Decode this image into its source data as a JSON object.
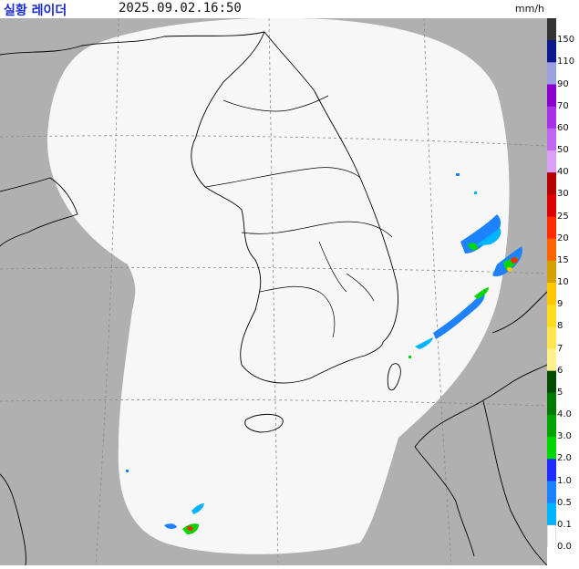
{
  "header": {
    "title": "실황 레이더",
    "timestamp": "2025.09.02.16:50",
    "unit": "mm/h"
  },
  "legend": {
    "levels": [
      {
        "label": "150",
        "color": "#333333"
      },
      {
        "label": "110",
        "color": "#0c1a8c"
      },
      {
        "label": "90",
        "color": "#9aa2e0"
      },
      {
        "label": "70",
        "color": "#8a00cc"
      },
      {
        "label": "60",
        "color": "#a832e6"
      },
      {
        "label": "50",
        "color": "#c066f0"
      },
      {
        "label": "40",
        "color": "#d8a0f6"
      },
      {
        "label": "30",
        "color": "#b50000"
      },
      {
        "label": "25",
        "color": "#dd0000"
      },
      {
        "label": "20",
        "color": "#ff2a00"
      },
      {
        "label": "15",
        "color": "#ff6400"
      },
      {
        "label": "10",
        "color": "#d6a000"
      },
      {
        "label": "9",
        "color": "#ffc800"
      },
      {
        "label": "8",
        "color": "#ffdc1e"
      },
      {
        "label": "7",
        "color": "#ffe650"
      },
      {
        "label": "6",
        "color": "#fff08c"
      },
      {
        "label": "5",
        "color": "#004d00"
      },
      {
        "label": "4.0",
        "color": "#007a00"
      },
      {
        "label": "3.0",
        "color": "#00a300"
      },
      {
        "label": "2.0",
        "color": "#00d600"
      },
      {
        "label": "1.0",
        "color": "#1e2bff"
      },
      {
        "label": "0.5",
        "color": "#1e82ff"
      },
      {
        "label": "0.1",
        "color": "#00b4ff"
      },
      {
        "label": "0.0",
        "color": "#ffffff"
      }
    ]
  },
  "map": {
    "no_coverage_color": "#b0b0b0",
    "coverage_color": "#f7f7f7",
    "coastline_color": "#000000",
    "gridline_color": "#8a8a8a"
  }
}
